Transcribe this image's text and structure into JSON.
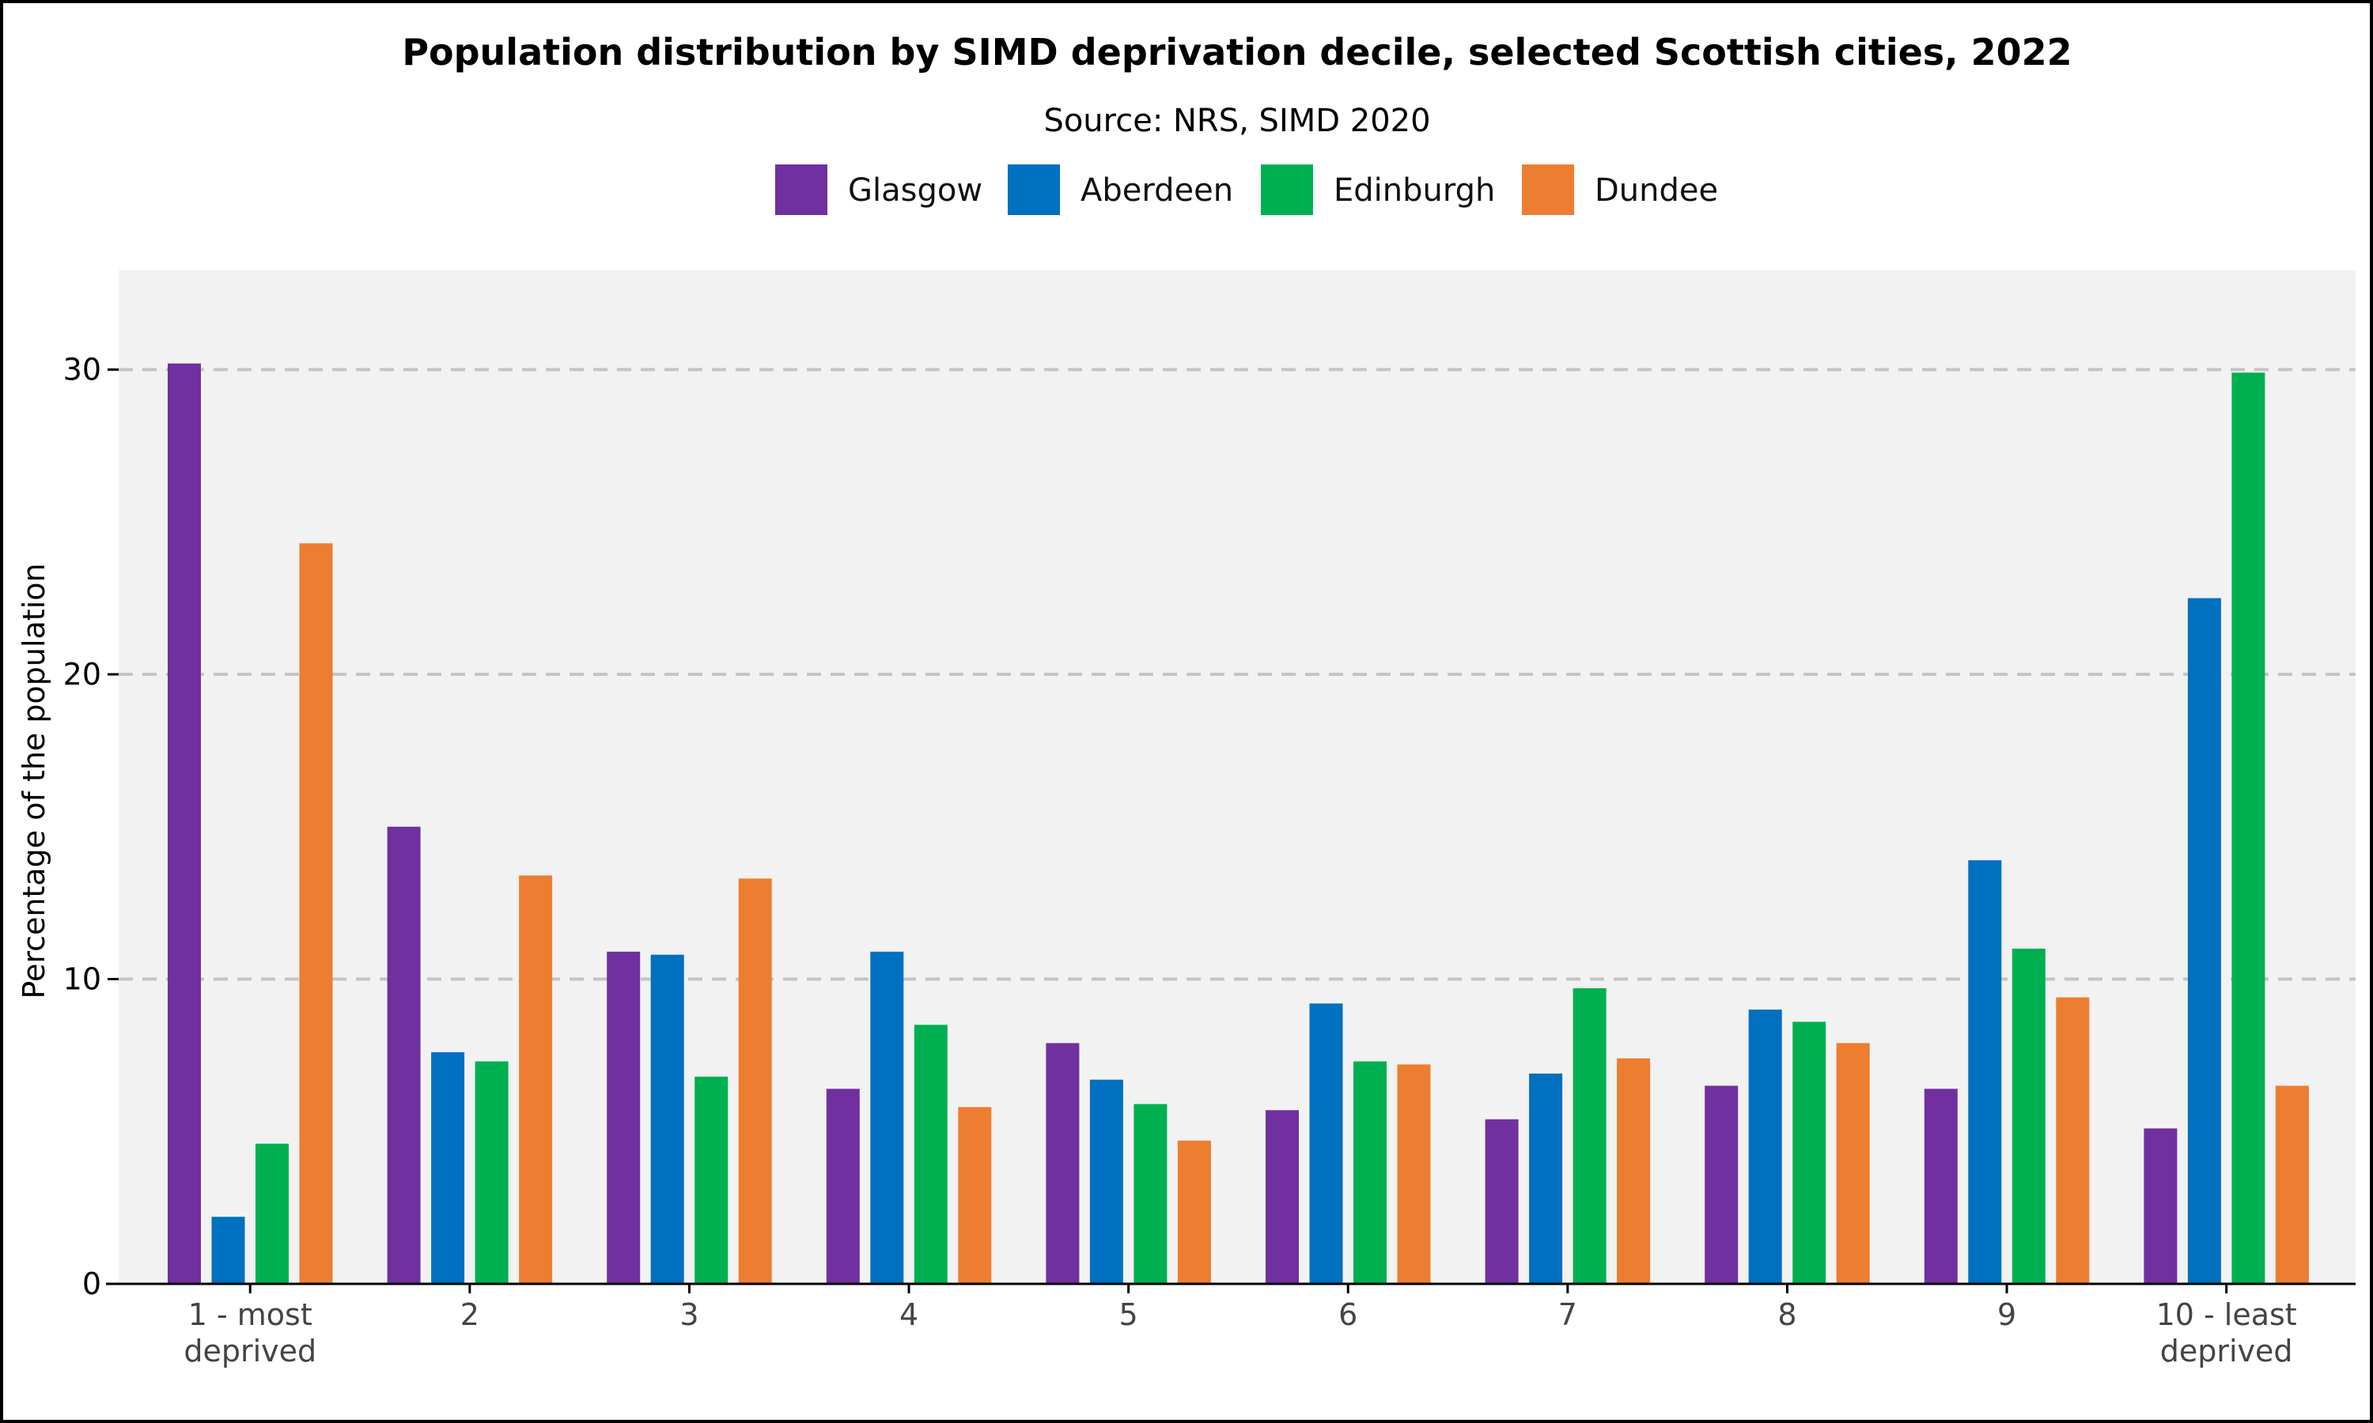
{
  "chart_data": {
    "type": "bar",
    "title": "Population distribution by SIMD deprivation decile, selected Scottish cities, 2022",
    "subtitle": "Source: NRS, SIMD 2020",
    "xlabel": "",
    "ylabel": "Percentage of the population",
    "ylim": [
      0,
      33
    ],
    "yticks": [
      0,
      10,
      20,
      30
    ],
    "grid": true,
    "legend_position": "top",
    "categories": [
      [
        "1 - most",
        "deprived"
      ],
      [
        "2"
      ],
      [
        "3"
      ],
      [
        "4"
      ],
      [
        "5"
      ],
      [
        "6"
      ],
      [
        "7"
      ],
      [
        "8"
      ],
      [
        "9"
      ],
      [
        "10 - least",
        "deprived"
      ]
    ],
    "series": [
      {
        "name": "Glasgow",
        "color": "#7030A0",
        "values": [
          30.2,
          15.0,
          10.9,
          6.4,
          7.9,
          5.7,
          5.4,
          6.5,
          6.4,
          5.1
        ]
      },
      {
        "name": "Aberdeen",
        "color": "#0070C0",
        "values": [
          2.2,
          7.6,
          10.8,
          10.9,
          6.7,
          9.2,
          6.9,
          9.0,
          13.9,
          22.5
        ]
      },
      {
        "name": "Edinburgh",
        "color": "#00B050",
        "values": [
          4.6,
          7.3,
          6.8,
          8.5,
          5.9,
          7.3,
          9.7,
          8.6,
          11.0,
          29.9
        ]
      },
      {
        "name": "Dundee",
        "color": "#ED7D31",
        "values": [
          24.3,
          13.4,
          13.3,
          5.8,
          4.7,
          7.2,
          7.4,
          7.9,
          9.4,
          6.5
        ]
      }
    ]
  }
}
